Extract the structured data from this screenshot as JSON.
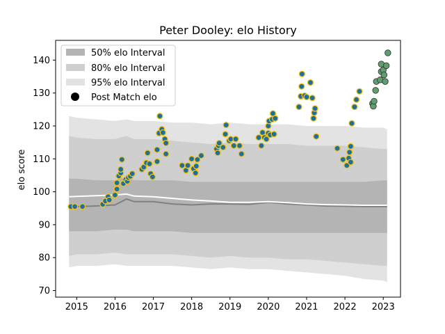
{
  "chart_data": {
    "type": "scatter",
    "title": "Peter Dooley: elo History",
    "xlabel": "",
    "ylabel": "elo score",
    "xlim": [
      2014.45,
      2023.45
    ],
    "ylim": [
      68,
      146
    ],
    "xticks": [
      2015,
      2016,
      2017,
      2018,
      2019,
      2020,
      2021,
      2022,
      2023
    ],
    "yticks": [
      70,
      80,
      90,
      100,
      110,
      120,
      130,
      140
    ],
    "grid": false,
    "legend": {
      "position": "top-left",
      "entries": [
        "50% elo Interval",
        "80% elo Interval",
        "95% elo Interval",
        "Post Match elo"
      ]
    },
    "colors": {
      "band95": "#e3e3e3",
      "band80": "#cfcfcf",
      "band50": "#b4b4b4",
      "median_line": "#808080",
      "mean_line": "#ffffff",
      "point_fill": "#1f6f99",
      "point_edge": "#f2c21b",
      "future_fill": "#5f9e6e",
      "future_edge": "#3a3a3a"
    },
    "bands": {
      "x": [
        2014.8,
        2015.0,
        2015.5,
        2016.0,
        2016.3,
        2016.5,
        2017.0,
        2017.5,
        2018.0,
        2018.5,
        2019.0,
        2019.5,
        2020.0,
        2020.5,
        2021.0,
        2021.5,
        2022.0,
        2022.5,
        2023.0,
        2023.1
      ],
      "p95_hi": [
        123,
        122.5,
        122,
        121.5,
        122,
        121.5,
        121.5,
        121,
        121,
        120.5,
        121,
        120.5,
        120.5,
        120.5,
        120,
        120,
        120,
        119.5,
        119.5,
        119
      ],
      "p95_lo": [
        77,
        77.5,
        77.5,
        78,
        77.5,
        77.5,
        77.5,
        77.5,
        77,
        76.5,
        77,
        76.5,
        76.5,
        76,
        75.5,
        75,
        74.5,
        73.5,
        73,
        72.5
      ],
      "p80_hi": [
        117,
        116.5,
        116,
        116,
        117,
        116,
        116,
        115.5,
        115,
        114.5,
        115,
        114.5,
        114.5,
        114.5,
        114,
        114,
        114,
        113.5,
        113,
        113
      ],
      "p80_lo": [
        80.5,
        81,
        81,
        81.5,
        81,
        81,
        81,
        81,
        80.5,
        80,
        80.5,
        80,
        80,
        79.5,
        79.5,
        79,
        78.5,
        78,
        77.5,
        77.5
      ],
      "p50_hi": [
        104,
        104,
        103.5,
        103.5,
        104.5,
        103.5,
        103.5,
        103.5,
        103,
        103,
        103,
        103,
        103,
        103,
        103,
        103,
        103,
        103,
        103.5,
        103.5
      ],
      "p50_lo": [
        88,
        88,
        88,
        88.5,
        88.5,
        88,
        88,
        88,
        87.5,
        87.5,
        87.5,
        87.5,
        87.5,
        87.5,
        87.5,
        87.5,
        87.5,
        87.5,
        87.5,
        87.5
      ],
      "median": [
        95.5,
        95.5,
        95.7,
        96,
        97.8,
        97,
        97,
        96.3,
        96,
        96.3,
        96.3,
        96.2,
        96.8,
        96.3,
        96,
        95.7,
        95.6,
        95.5,
        95.5,
        95.5
      ],
      "mean": [
        98.5,
        98.6,
        98.8,
        99,
        99.3,
        98.7,
        98.5,
        98,
        97.5,
        97.2,
        96.8,
        96.8,
        97,
        96.7,
        96.3,
        96.1,
        96,
        95.9,
        95.9,
        95.9
      ]
    },
    "points": [
      {
        "x": 2014.85,
        "y": 95.5
      },
      {
        "x": 2014.95,
        "y": 95.5
      },
      {
        "x": 2015.15,
        "y": 95.5
      },
      {
        "x": 2015.68,
        "y": 96.2
      },
      {
        "x": 2015.75,
        "y": 97.2
      },
      {
        "x": 2015.82,
        "y": 98.5
      },
      {
        "x": 2015.85,
        "y": 97.5
      },
      {
        "x": 2016.0,
        "y": 99.0
      },
      {
        "x": 2016.05,
        "y": 100.8
      },
      {
        "x": 2016.05,
        "y": 102.7
      },
      {
        "x": 2016.1,
        "y": 104.8
      },
      {
        "x": 2016.15,
        "y": 105.7
      },
      {
        "x": 2016.15,
        "y": 106.8
      },
      {
        "x": 2016.18,
        "y": 109.8
      },
      {
        "x": 2016.22,
        "y": 102.5
      },
      {
        "x": 2016.28,
        "y": 103.7
      },
      {
        "x": 2016.32,
        "y": 103.2
      },
      {
        "x": 2016.35,
        "y": 104.3
      },
      {
        "x": 2016.4,
        "y": 104.7
      },
      {
        "x": 2016.45,
        "y": 105.5
      },
      {
        "x": 2016.7,
        "y": 106.8
      },
      {
        "x": 2016.75,
        "y": 107.5
      },
      {
        "x": 2016.82,
        "y": 108.8
      },
      {
        "x": 2016.85,
        "y": 111.8
      },
      {
        "x": 2016.9,
        "y": 108.5
      },
      {
        "x": 2016.93,
        "y": 105.5
      },
      {
        "x": 2016.98,
        "y": 104.5
      },
      {
        "x": 2017.1,
        "y": 109.2
      },
      {
        "x": 2017.1,
        "y": 112.8
      },
      {
        "x": 2017.15,
        "y": 117.8
      },
      {
        "x": 2017.17,
        "y": 123.0
      },
      {
        "x": 2017.22,
        "y": 119.0
      },
      {
        "x": 2017.25,
        "y": 118.0
      },
      {
        "x": 2017.3,
        "y": 116.0
      },
      {
        "x": 2017.33,
        "y": 114.8
      },
      {
        "x": 2017.33,
        "y": 111.5
      },
      {
        "x": 2017.75,
        "y": 108.0
      },
      {
        "x": 2017.85,
        "y": 106.5
      },
      {
        "x": 2017.9,
        "y": 108.0
      },
      {
        "x": 2018.0,
        "y": 110.0
      },
      {
        "x": 2018.05,
        "y": 107.0
      },
      {
        "x": 2018.1,
        "y": 105.7
      },
      {
        "x": 2018.12,
        "y": 107.8
      },
      {
        "x": 2018.15,
        "y": 109.8
      },
      {
        "x": 2018.25,
        "y": 111.0
      },
      {
        "x": 2018.65,
        "y": 113.0
      },
      {
        "x": 2018.68,
        "y": 111.8
      },
      {
        "x": 2018.7,
        "y": 114.0
      },
      {
        "x": 2018.72,
        "y": 114.8
      },
      {
        "x": 2018.82,
        "y": 113.5
      },
      {
        "x": 2018.88,
        "y": 117.5
      },
      {
        "x": 2018.9,
        "y": 120.3
      },
      {
        "x": 2018.98,
        "y": 115.5
      },
      {
        "x": 2019.02,
        "y": 116.0
      },
      {
        "x": 2019.1,
        "y": 114.0
      },
      {
        "x": 2019.15,
        "y": 116.0
      },
      {
        "x": 2019.25,
        "y": 114.0
      },
      {
        "x": 2019.3,
        "y": 111.5
      },
      {
        "x": 2019.75,
        "y": 116.5
      },
      {
        "x": 2019.82,
        "y": 114.0
      },
      {
        "x": 2019.85,
        "y": 118.0
      },
      {
        "x": 2019.9,
        "y": 116.5
      },
      {
        "x": 2019.95,
        "y": 116.0
      },
      {
        "x": 2020.0,
        "y": 117.8
      },
      {
        "x": 2020.0,
        "y": 120.0
      },
      {
        "x": 2020.02,
        "y": 121.5
      },
      {
        "x": 2020.05,
        "y": 117.3
      },
      {
        "x": 2020.1,
        "y": 122.0
      },
      {
        "x": 2020.12,
        "y": 123.8
      },
      {
        "x": 2020.15,
        "y": 117.5
      },
      {
        "x": 2020.18,
        "y": 122.3
      },
      {
        "x": 2020.8,
        "y": 125.8
      },
      {
        "x": 2020.85,
        "y": 129.0
      },
      {
        "x": 2020.87,
        "y": 132.0
      },
      {
        "x": 2020.88,
        "y": 135.8
      },
      {
        "x": 2020.95,
        "y": 129.2
      },
      {
        "x": 2021.0,
        "y": 128.8
      },
      {
        "x": 2021.1,
        "y": 133.2
      },
      {
        "x": 2021.15,
        "y": 128.5
      },
      {
        "x": 2021.18,
        "y": 122.3
      },
      {
        "x": 2021.2,
        "y": 124.0
      },
      {
        "x": 2021.22,
        "y": 125.3
      },
      {
        "x": 2021.25,
        "y": 116.8
      },
      {
        "x": 2021.8,
        "y": 113.2
      },
      {
        "x": 2021.95,
        "y": 109.8
      },
      {
        "x": 2022.05,
        "y": 108.0
      },
      {
        "x": 2022.1,
        "y": 110.2
      },
      {
        "x": 2022.12,
        "y": 112.0
      },
      {
        "x": 2022.15,
        "y": 113.8
      },
      {
        "x": 2022.15,
        "y": 109.0
      },
      {
        "x": 2022.18,
        "y": 120.8
      },
      {
        "x": 2022.25,
        "y": 125.8
      },
      {
        "x": 2022.3,
        "y": 128.0
      },
      {
        "x": 2022.38,
        "y": 130.5
      }
    ],
    "future_points": [
      {
        "x": 2022.72,
        "y": 126.8
      },
      {
        "x": 2022.74,
        "y": 126.0
      },
      {
        "x": 2022.76,
        "y": 127.5
      },
      {
        "x": 2022.8,
        "y": 130.8
      },
      {
        "x": 2022.82,
        "y": 133.5
      },
      {
        "x": 2022.92,
        "y": 134.0
      },
      {
        "x": 2022.95,
        "y": 136.5
      },
      {
        "x": 2022.95,
        "y": 138.8
      },
      {
        "x": 2023.0,
        "y": 137.0
      },
      {
        "x": 2023.02,
        "y": 135.5
      },
      {
        "x": 2023.05,
        "y": 133.5
      },
      {
        "x": 2023.08,
        "y": 138.3
      },
      {
        "x": 2023.12,
        "y": 142.2
      }
    ]
  }
}
